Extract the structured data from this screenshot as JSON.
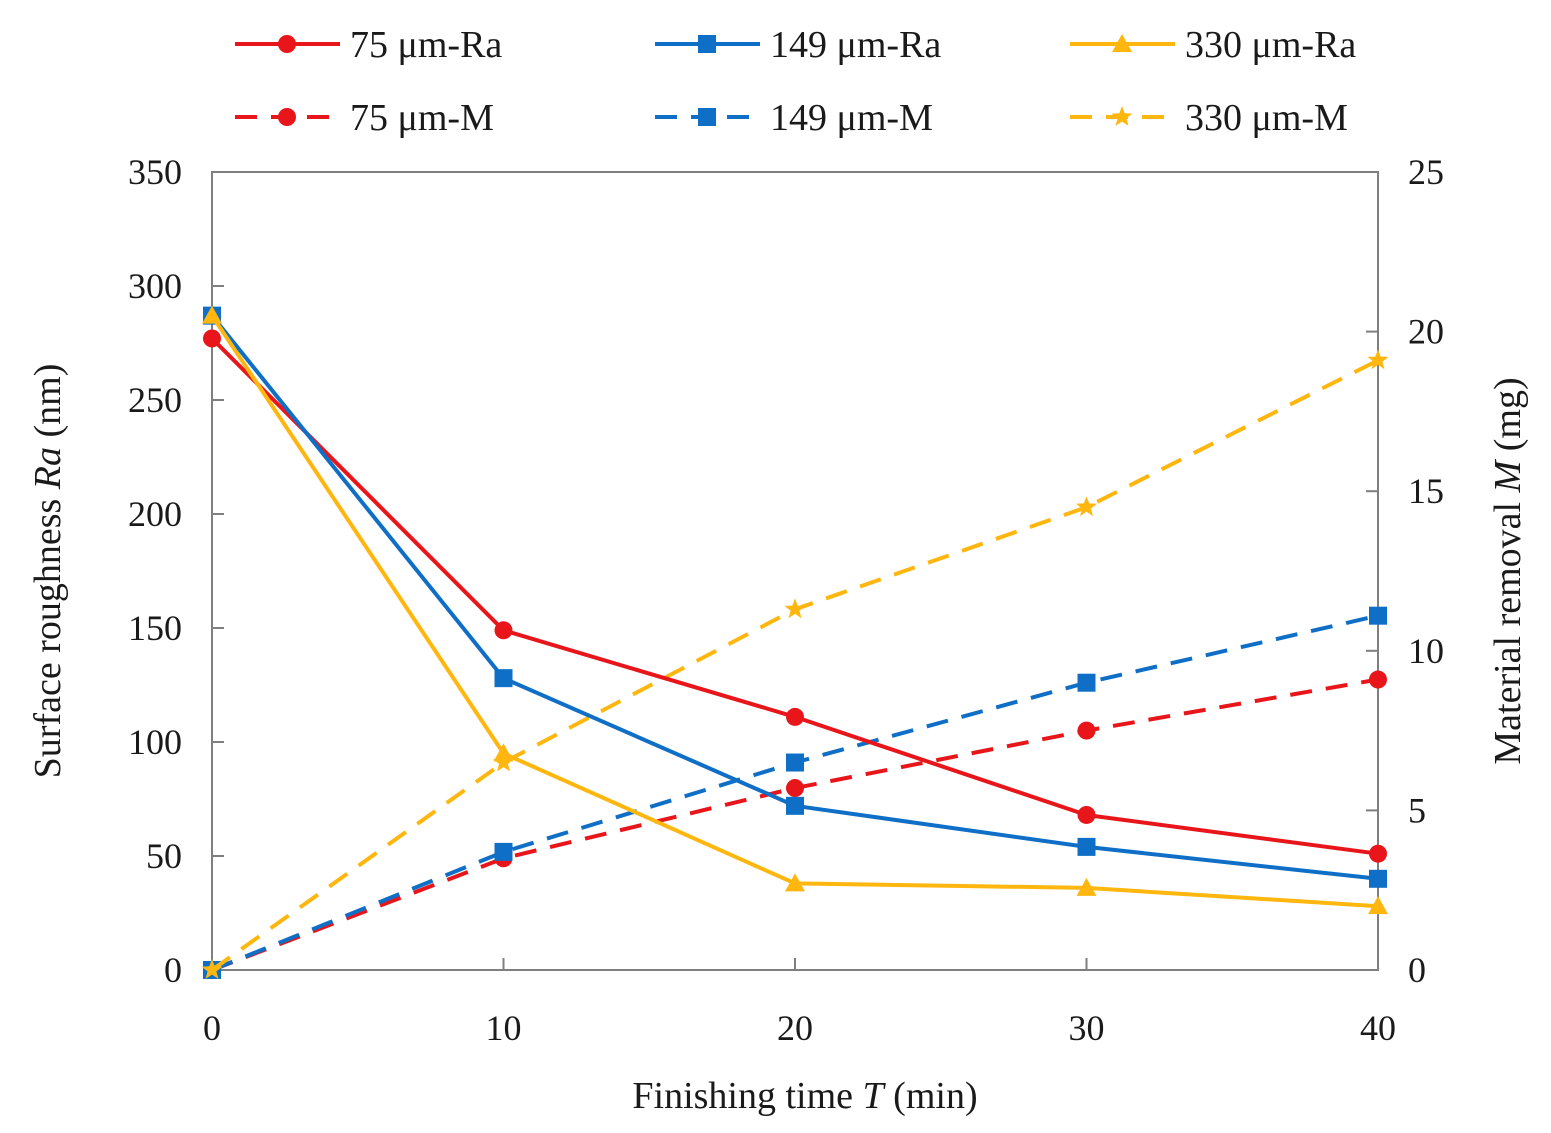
{
  "chart_data": {
    "type": "line",
    "xlabel": {
      "prefix": "Finishing time ",
      "var": "T",
      "suffix": " (min)"
    },
    "ylabel": {
      "prefix": "Surface roughness ",
      "var": "Ra",
      "suffix": " (nm)"
    },
    "y2label": {
      "prefix": "Material removal ",
      "var": "M",
      "suffix": " (mg)"
    },
    "x": [
      0,
      10,
      20,
      30,
      40
    ],
    "x_ticks": [
      "0",
      "10",
      "20",
      "30",
      "40"
    ],
    "xlim": [
      0,
      40
    ],
    "ylim": [
      0,
      350
    ],
    "y_ticks": [
      "0",
      "50",
      "100",
      "150",
      "200",
      "250",
      "300",
      "350"
    ],
    "y2lim": [
      0,
      25
    ],
    "y2_ticks": [
      "0",
      "5",
      "10",
      "15",
      "20",
      "25"
    ],
    "grid": false,
    "legend_position": "top",
    "series": [
      {
        "name": "75 μm-Ra",
        "axis": "left",
        "color": "#e8161b",
        "marker": "circle",
        "dash": false,
        "values": [
          277,
          149,
          111,
          68,
          51
        ]
      },
      {
        "name": "149 μm-Ra",
        "axis": "left",
        "color": "#0f6fc6",
        "marker": "square",
        "dash": false,
        "values": [
          287,
          128,
          72,
          54,
          40
        ]
      },
      {
        "name": "330 μm-Ra",
        "axis": "left",
        "color": "#ffb70f",
        "marker": "triangle",
        "dash": false,
        "values": [
          287,
          95,
          38,
          36,
          28
        ]
      },
      {
        "name": "75 μm-M",
        "axis": "right",
        "color": "#e8161b",
        "marker": "circle",
        "dash": true,
        "values": [
          0,
          3.5,
          5.7,
          7.5,
          9.1
        ]
      },
      {
        "name": "149 μm-M",
        "axis": "right",
        "color": "#0f6fc6",
        "marker": "square",
        "dash": true,
        "values": [
          0,
          3.7,
          6.5,
          9.0,
          11.1
        ]
      },
      {
        "name": "330 μm-M",
        "axis": "right",
        "color": "#ffb70f",
        "marker": "star",
        "dash": true,
        "values": [
          0,
          6.5,
          11.3,
          14.5,
          19.1
        ]
      }
    ]
  }
}
